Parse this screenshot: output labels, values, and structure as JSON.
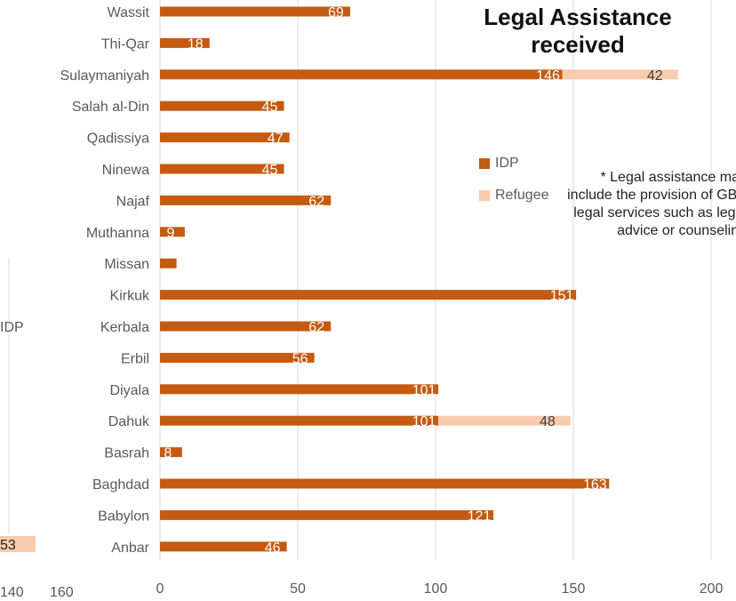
{
  "title": "Legal Assistance received",
  "note": "* Legal assistance may include the provision of GBV legal services such as legal advice or counseling",
  "legend": [
    {
      "label": "IDP",
      "color": "#C55A11"
    },
    {
      "label": "Refugee",
      "color": "#F8CBAD"
    }
  ],
  "left_fragments": {
    "label": "IDP",
    "value": "53",
    "tick_a": "140",
    "tick_b": "160"
  },
  "chart_data": {
    "type": "bar",
    "orientation": "horizontal",
    "stacked": true,
    "title": "Legal Assistance received",
    "categories": [
      "Wassit",
      "Thi-Qar",
      "Sulaymaniyah",
      "Salah al-Din",
      "Qadissiya",
      "Ninewa",
      "Najaf",
      "Muthanna",
      "Missan",
      "Kirkuk",
      "Kerbala",
      "Erbil",
      "Diyala",
      "Dahuk",
      "Basrah",
      "Baghdad",
      "Babylon",
      "Anbar"
    ],
    "series": [
      {
        "name": "IDP",
        "color": "#C55A11",
        "values": [
          69,
          18,
          146,
          45,
          47,
          45,
          62,
          9,
          6,
          151,
          62,
          56,
          101,
          101,
          8,
          163,
          121,
          46
        ],
        "labels": [
          "69",
          "18",
          "146",
          "45",
          "47",
          "45",
          "62",
          "9",
          "",
          "151",
          "62",
          "56",
          "101",
          "101",
          "8",
          "163",
          "121",
          "46"
        ]
      },
      {
        "name": "Refugee",
        "color": "#F8CBAD",
        "values": [
          0,
          0,
          42,
          0,
          0,
          0,
          0,
          0,
          0,
          0,
          0,
          0,
          0,
          48,
          0,
          0,
          0,
          0
        ],
        "labels": [
          "",
          "",
          "42",
          "",
          "",
          "",
          "",
          "",
          "",
          "",
          "",
          "",
          "",
          "48",
          "",
          "",
          "",
          ""
        ]
      }
    ],
    "xlim": [
      0,
      200
    ],
    "xticks": [
      0,
      50,
      100,
      150,
      200
    ],
    "grid": true,
    "legend_position": "right"
  }
}
